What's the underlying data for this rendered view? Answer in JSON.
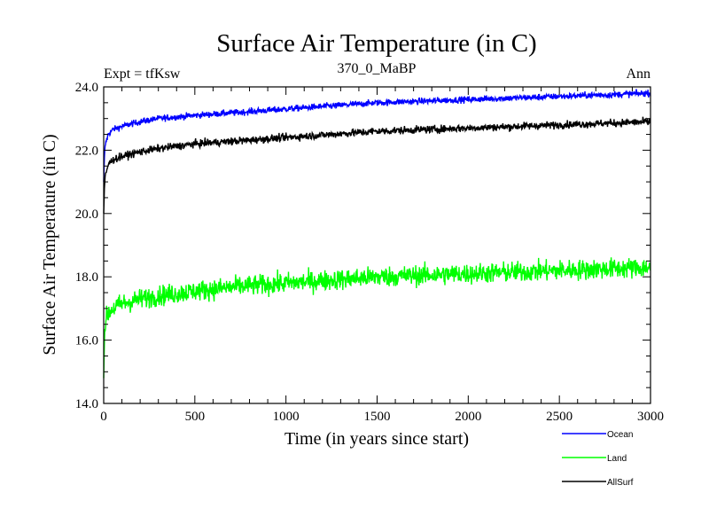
{
  "chart_data": {
    "type": "line",
    "title": "Surface Air Temperature (in C)",
    "subtitle_left": "Expt = tfKsw",
    "subtitle_center": "370_0_MaBP",
    "subtitle_right": "Ann",
    "xlabel": "Time (in years since start)",
    "ylabel": "Surface Air Temperature (in C)",
    "xlim": [
      0,
      3000
    ],
    "ylim": [
      14.0,
      24.0
    ],
    "x_ticks": [
      0,
      500,
      1000,
      1500,
      2000,
      2500,
      3000
    ],
    "x_tick_labels": [
      "0",
      "500",
      "1000",
      "1500",
      "2000",
      "2500",
      "3000"
    ],
    "y_ticks": [
      14.0,
      16.0,
      18.0,
      20.0,
      22.0,
      24.0
    ],
    "y_tick_labels": [
      "14.0",
      "16.0",
      "18.0",
      "20.0",
      "22.0",
      "24.0"
    ],
    "legend_position": "bottom-right",
    "series": [
      {
        "name": "Ocean",
        "color": "#0000ff",
        "noise": 0.05,
        "x": [
          0,
          5,
          10,
          25,
          50,
          100,
          200,
          300,
          500,
          750,
          1000,
          1250,
          1500,
          1750,
          2000,
          2250,
          2500,
          2750,
          3000
        ],
        "values": [
          21.0,
          21.9,
          22.2,
          22.5,
          22.65,
          22.75,
          22.9,
          23.0,
          23.1,
          23.2,
          23.3,
          23.4,
          23.5,
          23.55,
          23.6,
          23.65,
          23.7,
          23.75,
          23.8
        ]
      },
      {
        "name": "Land",
        "color": "#00ff00",
        "noise": 0.16,
        "x": [
          0,
          5,
          10,
          25,
          50,
          100,
          200,
          300,
          500,
          750,
          1000,
          1250,
          1500,
          1750,
          2000,
          2250,
          2500,
          2750,
          3000
        ],
        "values": [
          14.8,
          16.2,
          16.6,
          16.85,
          17.0,
          17.15,
          17.3,
          17.4,
          17.55,
          17.7,
          17.8,
          17.9,
          18.0,
          18.05,
          18.1,
          18.15,
          18.2,
          18.25,
          18.3
        ]
      },
      {
        "name": "AllSurf",
        "color": "#000000",
        "noise": 0.06,
        "x": [
          0,
          5,
          10,
          25,
          50,
          100,
          200,
          300,
          500,
          750,
          1000,
          1250,
          1500,
          1750,
          2000,
          2250,
          2500,
          2750,
          3000
        ],
        "values": [
          20.0,
          20.9,
          21.2,
          21.55,
          21.7,
          21.8,
          21.95,
          22.05,
          22.2,
          22.3,
          22.4,
          22.5,
          22.6,
          22.65,
          22.7,
          22.75,
          22.8,
          22.85,
          22.9
        ]
      }
    ]
  }
}
